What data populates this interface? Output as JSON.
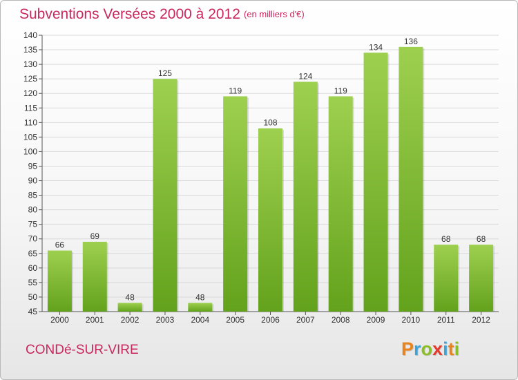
{
  "header": {
    "title": "Subventions Versées 2000 à 2012",
    "subtitle": "(en milliers d'€)"
  },
  "footer": {
    "commune": "CONDé-SUR-VIRE",
    "logo_text": "Proxiti"
  },
  "colors": {
    "title": "#c8285e",
    "bar_light": "#9ed04f",
    "bar_dark": "#63a21c",
    "grid": "#d9d9d9"
  },
  "chart_data": {
    "type": "bar",
    "categories": [
      "2000",
      "2001",
      "2002",
      "2003",
      "2004",
      "2005",
      "2006",
      "2007",
      "2008",
      "2009",
      "2010",
      "2011",
      "2012"
    ],
    "values": [
      66,
      69,
      48,
      125,
      48,
      119,
      108,
      124,
      119,
      134,
      136,
      68,
      68
    ],
    "title": "Subventions Versées 2000 à 2012",
    "ylabel": "",
    "xlabel": "",
    "ylim": [
      45,
      140
    ],
    "yticks": [
      45,
      50,
      55,
      60,
      65,
      70,
      75,
      80,
      85,
      90,
      95,
      100,
      105,
      110,
      115,
      120,
      125,
      130,
      135,
      140
    ],
    "grid": true,
    "legend": "none"
  }
}
